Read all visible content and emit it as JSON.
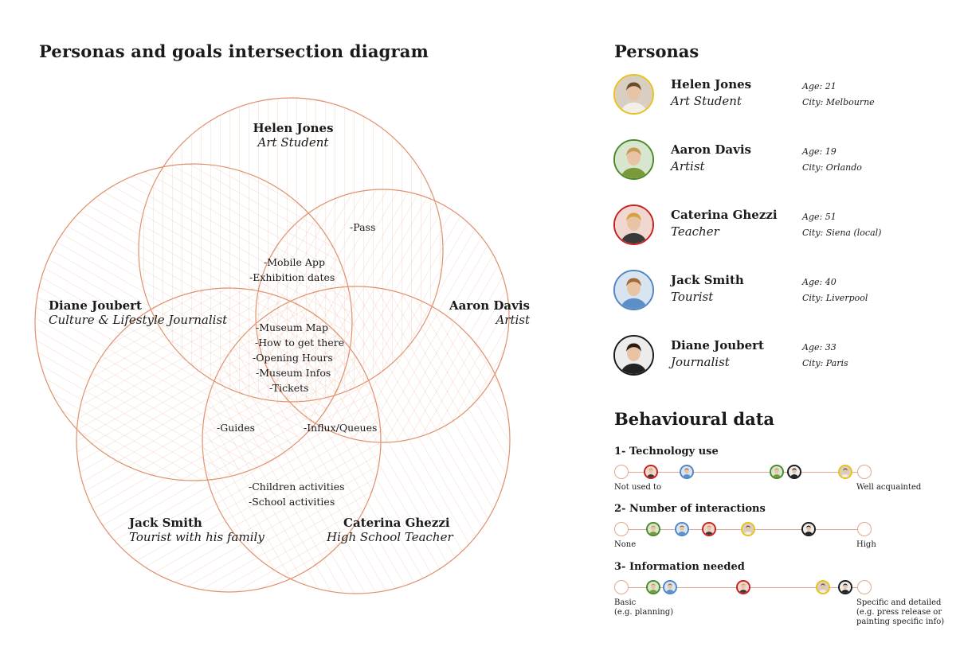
{
  "diagram_title": "Personas and goals intersection diagram",
  "venn": {
    "circles": [
      {
        "name": "Helen Jones",
        "role": "Art Student"
      },
      {
        "name": "Aaron Davis",
        "role": "Artist"
      },
      {
        "name": "Caterina Ghezzi",
        "role": "High School Teacher"
      },
      {
        "name": "Jack Smith",
        "role": "Tourist with his family"
      },
      {
        "name": "Diane Joubert",
        "role": "Culture & Lifestyle Journalist"
      }
    ],
    "goals": {
      "pass": "-Pass",
      "helen_aaron": [
        "-Mobile App",
        "-Exhibition dates"
      ],
      "center": [
        "-Museum Map",
        "-How to get there",
        "-Opening Hours",
        "-Museum Infos",
        "-Tickets"
      ],
      "guides": "-Guides",
      "influx": "-Influx/Queues",
      "children": [
        "-Children activities",
        "-School activities"
      ]
    },
    "stroke_color": "#e0906c"
  },
  "personas_title": "Personas",
  "personas": [
    {
      "name": "Helen Jones",
      "role": "Art Student",
      "age": "Age: 21",
      "city": "City: Melbourne",
      "color": "#e8c21a"
    },
    {
      "name": "Aaron Davis",
      "role": "Artist",
      "age": "Age: 19",
      "city": "City: Orlando",
      "color": "#4a8a2a"
    },
    {
      "name": "Caterina Ghezzi",
      "role": "Teacher",
      "age": "Age: 51",
      "city": "City: Siena (local)",
      "color": "#c8201e"
    },
    {
      "name": "Jack Smith",
      "role": "Tourist",
      "age": "Age: 40",
      "city": "City: Liverpool",
      "color": "#4f86c6"
    },
    {
      "name": "Diane Joubert",
      "role": "Journalist",
      "age": "Age: 33",
      "city": "City: Paris",
      "color": "#1a1a1a"
    }
  ],
  "behaviour_title": "Behavioural data",
  "scales": [
    {
      "title": "1- Technology use",
      "low": "Not used to",
      "high": "Well acquainted",
      "positions": [
        {
          "persona": "Caterina Ghezzi",
          "level": 0.12
        },
        {
          "persona": "Jack Smith",
          "level": 0.27
        },
        {
          "persona": "Aaron Davis",
          "level": 0.64
        },
        {
          "persona": "Diane Joubert",
          "level": 0.71
        },
        {
          "persona": "Helen Jones",
          "level": 0.92
        }
      ]
    },
    {
      "title": "2- Number of interactions",
      "low": "None",
      "high": "High",
      "positions": [
        {
          "persona": "Aaron Davis",
          "level": 0.13
        },
        {
          "persona": "Jack Smith",
          "level": 0.25
        },
        {
          "persona": "Caterina Ghezzi",
          "level": 0.36
        },
        {
          "persona": "Helen Jones",
          "level": 0.52
        },
        {
          "persona": "Diane Joubert",
          "level": 0.77
        }
      ]
    },
    {
      "title": "3- Information needed",
      "low": "Basic\n(e.g. planning)",
      "high": "Specific and detailed\n(e.g. press release or\npainting specific info)",
      "positions": [
        {
          "persona": "Aaron Davis",
          "level": 0.13
        },
        {
          "persona": "Jack Smith",
          "level": 0.2
        },
        {
          "persona": "Caterina Ghezzi",
          "level": 0.5
        },
        {
          "persona": "Helen Jones",
          "level": 0.83
        },
        {
          "persona": "Diane Joubert",
          "level": 0.92
        }
      ]
    }
  ]
}
